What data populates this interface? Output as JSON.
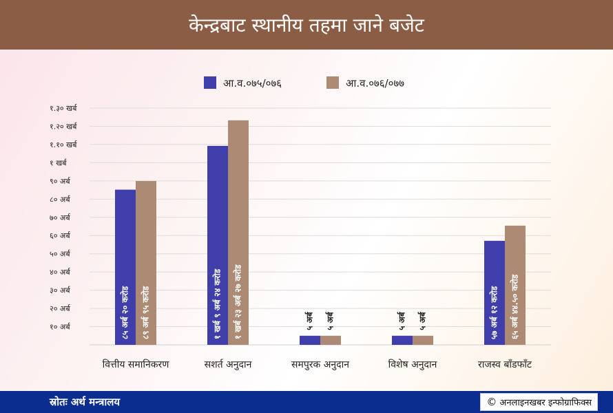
{
  "title": "केन्द्रबाट स्थानीय तहमा जाने बजेट",
  "source": "स्रोतः अर्थ मन्त्रालय",
  "credit": "अनलाइनखबर इन्फोग्राफिक्स",
  "colors": {
    "header": "#8a5d44",
    "footer": "#0b2d8f",
    "series1": "#3f3eaa",
    "series2": "#ad8a74"
  },
  "chart_data": {
    "type": "bar",
    "categories": [
      "वित्तीय समानिकरण",
      "सशर्त अनुदान",
      "समपुरक अनुदान",
      "विशेष अनुदान",
      "राजस्व बाँडफाँट"
    ],
    "series": [
      {
        "name": "आ.व.०७५/०७६",
        "values": [
          85.2,
          109.24,
          5,
          5,
          57.12
        ],
        "labels": [
          "८५ अर्ब २० करोड",
          "१ खर्ब ९ अर्ब २४ करोड",
          "५ अर्ब",
          "५ अर्ब",
          "५७ अर्ब १२ करोड"
        ]
      },
      {
        "name": "आ.व.०७६/०७७",
        "values": [
          89.95,
          123.27,
          5,
          5,
          65.445
        ],
        "labels": [
          "८९ अर्ब ९५ करोड",
          "१ खर्ब २३ अर्ब २७ करोड",
          "५ अर्ब",
          "५ अर्ब",
          "६५ अर्ब ४४.५० करोड"
        ]
      }
    ],
    "yticks": [
      {
        "value": 10,
        "label": "१० अर्ब"
      },
      {
        "value": 20,
        "label": "२० अर्ब"
      },
      {
        "value": 30,
        "label": "३० अर्ब"
      },
      {
        "value": 40,
        "label": "४० अर्ब"
      },
      {
        "value": 50,
        "label": "५० अर्ब"
      },
      {
        "value": 60,
        "label": "६० अर्ब"
      },
      {
        "value": 70,
        "label": "७० अर्ब"
      },
      {
        "value": 80,
        "label": "८० अर्ब"
      },
      {
        "value": 90,
        "label": "९० अर्ब"
      },
      {
        "value": 100,
        "label": "१ खर्ब"
      },
      {
        "value": 110,
        "label": "१.१० खर्ब"
      },
      {
        "value": 120,
        "label": "१.२० खर्ब"
      },
      {
        "value": 130,
        "label": "१.३० खर्ब"
      }
    ],
    "ylim": [
      0,
      130
    ],
    "grid": true,
    "legend_position": "top-center"
  }
}
